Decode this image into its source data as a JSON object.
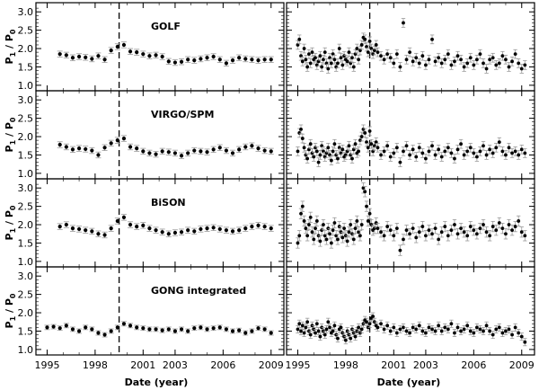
{
  "figure": {
    "y_label_main": "P",
    "y_label_sub1": "1",
    "y_label_sep": " / ",
    "y_label_sub0": "0",
    "x_label": "Date (year)",
    "x_ticks": [
      "1995",
      "1998",
      "2001",
      "2003",
      "2006",
      "2009"
    ],
    "y_ticks": [
      "1.0",
      "1.5",
      "2.0",
      "2.5",
      "3.0"
    ],
    "instruments": [
      "GOLF",
      "VIRGO/SPM",
      "BiSON",
      "GONG integrated"
    ]
  },
  "chart_data": [
    {
      "type": "scatter",
      "title": "GOLF",
      "panel": "left",
      "xlabel": "",
      "ylabel": "P1 / P0",
      "xlim": [
        1994.3,
        2009.8
      ],
      "ylim": [
        0.85,
        3.25
      ],
      "vline": 1999.5,
      "x": [
        1995.8,
        1996.2,
        1996.6,
        1997.0,
        1997.4,
        1997.8,
        1998.2,
        1998.6,
        1999.0,
        1999.4,
        1999.8,
        2000.2,
        2000.6,
        2001.0,
        2001.4,
        2001.8,
        2002.2,
        2002.6,
        2003.0,
        2003.4,
        2003.8,
        2004.2,
        2004.6,
        2005.0,
        2005.4,
        2005.8,
        2006.2,
        2006.6,
        2007.0,
        2007.4,
        2007.8,
        2008.2,
        2008.6,
        2009.0
      ],
      "y": [
        1.85,
        1.82,
        1.75,
        1.78,
        1.76,
        1.72,
        1.8,
        1.7,
        1.95,
        2.05,
        2.1,
        1.92,
        1.9,
        1.85,
        1.8,
        1.82,
        1.78,
        1.65,
        1.62,
        1.64,
        1.7,
        1.68,
        1.72,
        1.75,
        1.78,
        1.7,
        1.6,
        1.68,
        1.75,
        1.72,
        1.7,
        1.68,
        1.7,
        1.7
      ],
      "error": 0.08,
      "series_name": ""
    },
    {
      "type": "scatter",
      "title": "",
      "panel": "right",
      "xlim": [
        1994.3,
        2009.8
      ],
      "ylim": [
        0.85,
        3.25
      ],
      "vline": 1999.5,
      "x": [
        1995.0,
        1995.1,
        1995.2,
        1995.3,
        1995.4,
        1995.5,
        1995.6,
        1995.7,
        1995.8,
        1995.9,
        1996.0,
        1996.1,
        1996.2,
        1996.3,
        1996.4,
        1996.5,
        1996.6,
        1996.7,
        1996.8,
        1996.9,
        1997.0,
        1997.1,
        1997.2,
        1997.3,
        1997.4,
        1997.5,
        1997.6,
        1997.7,
        1997.8,
        1997.9,
        1998.0,
        1998.1,
        1998.2,
        1998.3,
        1998.4,
        1998.5,
        1998.6,
        1998.7,
        1998.8,
        1998.9,
        1999.0,
        1999.1,
        1999.2,
        1999.3,
        1999.4,
        1999.5,
        1999.6,
        1999.7,
        1999.8,
        1999.9,
        2000.0,
        2000.2,
        2000.4,
        2000.6,
        2000.8,
        2001.0,
        2001.2,
        2001.4,
        2001.6,
        2001.8,
        2002.0,
        2002.2,
        2002.4,
        2002.6,
        2002.8,
        2003.0,
        2003.2,
        2003.4,
        2003.6,
        2003.8,
        2004.0,
        2004.2,
        2004.4,
        2004.6,
        2004.8,
        2005.0,
        2005.2,
        2005.4,
        2005.6,
        2005.8,
        2006.0,
        2006.2,
        2006.4,
        2006.6,
        2006.8,
        2007.0,
        2007.2,
        2007.4,
        2007.6,
        2007.8,
        2008.0,
        2008.2,
        2008.4,
        2008.6,
        2008.8,
        2009.0,
        2009.2
      ],
      "y": [
        2.1,
        2.25,
        1.8,
        1.65,
        2.0,
        1.7,
        1.5,
        1.85,
        1.6,
        1.9,
        1.7,
        1.75,
        1.55,
        1.65,
        1.8,
        1.5,
        1.7,
        1.9,
        1.6,
        1.45,
        1.75,
        1.6,
        1.85,
        1.7,
        1.5,
        1.6,
        2.0,
        1.75,
        1.55,
        1.8,
        1.7,
        1.65,
        1.9,
        1.6,
        1.75,
        1.5,
        1.85,
        2.0,
        1.7,
        1.95,
        2.1,
        2.3,
        2.25,
        2.05,
        1.9,
        2.2,
        2.0,
        1.85,
        1.95,
        2.1,
        1.9,
        1.8,
        1.7,
        1.85,
        1.75,
        1.6,
        1.85,
        1.5,
        2.7,
        1.7,
        1.9,
        1.65,
        1.75,
        1.6,
        1.8,
        1.55,
        1.7,
        2.25,
        1.65,
        1.75,
        1.6,
        1.7,
        1.85,
        1.55,
        1.65,
        1.8,
        1.7,
        1.5,
        1.6,
        1.75,
        1.55,
        1.7,
        1.85,
        1.6,
        1.45,
        1.7,
        1.75,
        1.55,
        1.6,
        1.8,
        1.7,
        1.5,
        1.65,
        1.85,
        1.6,
        1.45,
        1.55
      ],
      "error": 0.12,
      "series_name": ""
    },
    {
      "type": "scatter",
      "title": "VIRGO/SPM",
      "panel": "left",
      "xlim": [
        1994.3,
        2009.8
      ],
      "ylim": [
        0.85,
        3.25
      ],
      "vline": 1999.5,
      "x": [
        1995.8,
        1996.2,
        1996.6,
        1997.0,
        1997.4,
        1997.8,
        1998.2,
        1998.6,
        1999.0,
        1999.4,
        1999.8,
        2000.2,
        2000.6,
        2001.0,
        2001.4,
        2001.8,
        2002.2,
        2002.6,
        2003.0,
        2003.4,
        2003.8,
        2004.2,
        2004.6,
        2005.0,
        2005.4,
        2005.8,
        2006.2,
        2006.6,
        2007.0,
        2007.4,
        2007.8,
        2008.2,
        2008.6,
        2009.0
      ],
      "y": [
        1.78,
        1.72,
        1.65,
        1.68,
        1.66,
        1.62,
        1.5,
        1.7,
        1.82,
        1.9,
        1.95,
        1.72,
        1.68,
        1.6,
        1.55,
        1.52,
        1.6,
        1.58,
        1.55,
        1.48,
        1.55,
        1.62,
        1.6,
        1.58,
        1.65,
        1.7,
        1.62,
        1.55,
        1.65,
        1.72,
        1.75,
        1.68,
        1.62,
        1.6
      ],
      "error": 0.08,
      "series_name": ""
    },
    {
      "type": "scatter",
      "title": "",
      "panel": "right",
      "xlim": [
        1994.3,
        2009.8
      ],
      "ylim": [
        0.85,
        3.25
      ],
      "vline": 1999.5,
      "x": [
        1995.0,
        1995.1,
        1995.2,
        1995.3,
        1995.4,
        1995.5,
        1995.6,
        1995.7,
        1995.8,
        1995.9,
        1996.0,
        1996.1,
        1996.2,
        1996.3,
        1996.4,
        1996.5,
        1996.6,
        1996.7,
        1996.8,
        1996.9,
        1997.0,
        1997.1,
        1997.2,
        1997.3,
        1997.4,
        1997.5,
        1997.6,
        1997.7,
        1997.8,
        1997.9,
        1998.0,
        1998.1,
        1998.2,
        1998.3,
        1998.4,
        1998.5,
        1998.6,
        1998.7,
        1998.8,
        1998.9,
        1999.0,
        1999.1,
        1999.2,
        1999.3,
        1999.4,
        1999.5,
        1999.6,
        1999.7,
        1999.8,
        1999.9,
        2000.0,
        2000.2,
        2000.4,
        2000.6,
        2000.8,
        2001.0,
        2001.2,
        2001.4,
        2001.6,
        2001.8,
        2002.0,
        2002.2,
        2002.4,
        2002.6,
        2002.8,
        2003.0,
        2003.2,
        2003.4,
        2003.6,
        2003.8,
        2004.0,
        2004.2,
        2004.4,
        2004.6,
        2004.8,
        2005.0,
        2005.2,
        2005.4,
        2005.6,
        2005.8,
        2006.0,
        2006.2,
        2006.4,
        2006.6,
        2006.8,
        2007.0,
        2007.2,
        2007.4,
        2007.6,
        2007.8,
        2008.0,
        2008.2,
        2008.4,
        2008.6,
        2008.8,
        2009.0,
        2009.2
      ],
      "y": [
        1.6,
        2.1,
        2.2,
        1.95,
        1.7,
        1.5,
        1.4,
        1.65,
        1.8,
        1.55,
        1.45,
        1.7,
        1.6,
        1.3,
        1.5,
        1.75,
        1.6,
        1.45,
        1.55,
        1.7,
        1.5,
        1.35,
        1.6,
        1.8,
        1.5,
        1.4,
        1.7,
        1.55,
        1.65,
        1.45,
        1.5,
        1.6,
        1.75,
        1.5,
        1.4,
        1.65,
        1.8,
        1.55,
        1.6,
        1.9,
        2.0,
        2.2,
        2.1,
        1.85,
        1.7,
        2.15,
        1.8,
        1.6,
        1.75,
        1.85,
        1.7,
        1.5,
        1.6,
        1.75,
        1.45,
        1.55,
        1.7,
        1.3,
        1.6,
        1.75,
        1.5,
        1.65,
        1.45,
        1.7,
        1.55,
        1.4,
        1.6,
        1.75,
        1.5,
        1.65,
        1.45,
        1.6,
        1.7,
        1.55,
        1.4,
        1.65,
        1.8,
        1.5,
        1.6,
        1.7,
        1.55,
        1.45,
        1.6,
        1.75,
        1.5,
        1.65,
        1.55,
        1.7,
        1.85,
        1.6,
        1.5,
        1.7,
        1.55,
        1.6,
        1.5,
        1.65,
        1.55
      ],
      "error": 0.12,
      "series_name": ""
    },
    {
      "type": "scatter",
      "title": "BiSON",
      "panel": "left",
      "xlim": [
        1994.3,
        2009.8
      ],
      "ylim": [
        0.85,
        3.25
      ],
      "vline": 1999.5,
      "x": [
        1995.8,
        1996.2,
        1996.6,
        1997.0,
        1997.4,
        1997.8,
        1998.2,
        1998.6,
        1999.0,
        1999.4,
        1999.8,
        2000.2,
        2000.6,
        2001.0,
        2001.4,
        2001.8,
        2002.2,
        2002.6,
        2003.0,
        2003.4,
        2003.8,
        2004.2,
        2004.6,
        2005.0,
        2005.4,
        2005.8,
        2006.2,
        2006.6,
        2007.0,
        2007.4,
        2007.8,
        2008.2,
        2008.6,
        2009.0
      ],
      "y": [
        1.95,
        2.0,
        1.9,
        1.88,
        1.85,
        1.82,
        1.75,
        1.72,
        1.9,
        2.1,
        2.2,
        2.0,
        1.95,
        1.98,
        1.9,
        1.85,
        1.8,
        1.75,
        1.78,
        1.8,
        1.85,
        1.82,
        1.88,
        1.9,
        1.92,
        1.88,
        1.85,
        1.82,
        1.85,
        1.9,
        1.95,
        1.98,
        1.95,
        1.9
      ],
      "error": 0.08,
      "series_name": ""
    },
    {
      "type": "scatter",
      "title": "",
      "panel": "right",
      "xlim": [
        1994.3,
        2009.8
      ],
      "ylim": [
        0.85,
        3.25
      ],
      "vline": 1999.5,
      "x": [
        1995.0,
        1995.1,
        1995.2,
        1995.3,
        1995.4,
        1995.5,
        1995.6,
        1995.7,
        1995.8,
        1995.9,
        1996.0,
        1996.1,
        1996.2,
        1996.3,
        1996.4,
        1996.5,
        1996.6,
        1996.7,
        1996.8,
        1996.9,
        1997.0,
        1997.1,
        1997.2,
        1997.3,
        1997.4,
        1997.5,
        1997.6,
        1997.7,
        1997.8,
        1997.9,
        1998.0,
        1998.1,
        1998.2,
        1998.3,
        1998.4,
        1998.5,
        1998.6,
        1998.7,
        1998.8,
        1998.9,
        1999.0,
        1999.1,
        1999.2,
        1999.3,
        1999.4,
        1999.5,
        1999.6,
        1999.7,
        1999.8,
        1999.9,
        2000.0,
        2000.2,
        2000.4,
        2000.6,
        2000.8,
        2001.0,
        2001.2,
        2001.4,
        2001.6,
        2001.8,
        2002.0,
        2002.2,
        2002.4,
        2002.6,
        2002.8,
        2003.0,
        2003.2,
        2003.4,
        2003.6,
        2003.8,
        2004.0,
        2004.2,
        2004.4,
        2004.6,
        2004.8,
        2005.0,
        2005.2,
        2005.4,
        2005.6,
        2005.8,
        2006.0,
        2006.2,
        2006.4,
        2006.6,
        2006.8,
        2007.0,
        2007.2,
        2007.4,
        2007.6,
        2007.8,
        2008.0,
        2008.2,
        2008.4,
        2008.6,
        2008.8,
        2009.0,
        2009.2
      ],
      "y": [
        1.5,
        1.7,
        2.3,
        2.5,
        2.1,
        1.9,
        1.7,
        2.0,
        2.2,
        1.8,
        1.6,
        1.9,
        2.1,
        1.7,
        1.55,
        1.85,
        2.0,
        1.7,
        1.6,
        1.9,
        1.75,
        1.5,
        1.85,
        2.05,
        1.7,
        1.6,
        1.95,
        1.8,
        1.65,
        1.9,
        1.7,
        1.55,
        1.8,
        2.0,
        1.75,
        1.6,
        1.9,
        2.1,
        1.8,
        1.7,
        2.0,
        3.0,
        2.9,
        2.5,
        2.1,
        2.3,
        2.0,
        1.85,
        1.9,
        2.05,
        1.9,
        1.8,
        1.7,
        1.95,
        1.85,
        1.7,
        1.9,
        1.3,
        1.6,
        1.85,
        1.75,
        1.9,
        1.65,
        1.8,
        1.95,
        1.7,
        1.85,
        1.75,
        1.9,
        1.6,
        1.8,
        1.95,
        1.7,
        1.85,
        2.0,
        1.75,
        1.9,
        1.8,
        1.7,
        1.95,
        1.85,
        1.75,
        1.9,
        2.0,
        1.8,
        1.7,
        1.95,
        1.85,
        2.05,
        1.9,
        1.75,
        2.0,
        1.85,
        1.95,
        2.1,
        1.8,
        1.7
      ],
      "error": 0.14,
      "series_name": ""
    },
    {
      "type": "scatter",
      "title": "GONG integrated",
      "panel": "left",
      "xlim": [
        1994.3,
        2009.8
      ],
      "ylim": [
        0.85,
        3.25
      ],
      "vline": 1999.5,
      "x": [
        1995.0,
        1995.4,
        1995.8,
        1996.2,
        1996.6,
        1997.0,
        1997.4,
        1997.8,
        1998.2,
        1998.6,
        1999.0,
        1999.4,
        1999.8,
        2000.2,
        2000.6,
        2001.0,
        2001.4,
        2001.8,
        2002.2,
        2002.6,
        2003.0,
        2003.4,
        2003.8,
        2004.2,
        2004.6,
        2005.0,
        2005.4,
        2005.8,
        2006.2,
        2006.6,
        2007.0,
        2007.4,
        2007.8,
        2008.2,
        2008.6,
        2009.0
      ],
      "y": [
        1.6,
        1.62,
        1.58,
        1.65,
        1.55,
        1.5,
        1.6,
        1.55,
        1.45,
        1.4,
        1.5,
        1.6,
        1.7,
        1.65,
        1.6,
        1.58,
        1.55,
        1.55,
        1.52,
        1.55,
        1.5,
        1.55,
        1.5,
        1.58,
        1.6,
        1.55,
        1.58,
        1.6,
        1.55,
        1.5,
        1.52,
        1.45,
        1.5,
        1.58,
        1.55,
        1.45
      ],
      "error": 0.06,
      "series_name": ""
    },
    {
      "type": "scatter",
      "title": "",
      "panel": "right",
      "xlim": [
        1994.3,
        2009.8
      ],
      "ylim": [
        0.85,
        3.25
      ],
      "vline": 1999.5,
      "x": [
        1995.0,
        1995.1,
        1995.2,
        1995.3,
        1995.4,
        1995.5,
        1995.6,
        1995.7,
        1995.8,
        1995.9,
        1996.0,
        1996.1,
        1996.2,
        1996.3,
        1996.4,
        1996.5,
        1996.6,
        1996.7,
        1996.8,
        1996.9,
        1997.0,
        1997.1,
        1997.2,
        1997.3,
        1997.4,
        1997.5,
        1997.6,
        1997.7,
        1997.8,
        1997.9,
        1998.0,
        1998.1,
        1998.2,
        1998.3,
        1998.4,
        1998.5,
        1998.6,
        1998.7,
        1998.8,
        1998.9,
        1999.0,
        1999.1,
        1999.2,
        1999.3,
        1999.4,
        1999.5,
        1999.6,
        1999.7,
        1999.8,
        1999.9,
        2000.0,
        2000.2,
        2000.4,
        2000.6,
        2000.8,
        2001.0,
        2001.2,
        2001.4,
        2001.6,
        2001.8,
        2002.0,
        2002.2,
        2002.4,
        2002.6,
        2002.8,
        2003.0,
        2003.2,
        2003.4,
        2003.6,
        2003.8,
        2004.0,
        2004.2,
        2004.4,
        2004.6,
        2004.8,
        2005.0,
        2005.2,
        2005.4,
        2005.6,
        2005.8,
        2006.0,
        2006.2,
        2006.4,
        2006.6,
        2006.8,
        2007.0,
        2007.2,
        2007.4,
        2007.6,
        2007.8,
        2008.0,
        2008.2,
        2008.4,
        2008.6,
        2008.8,
        2009.0,
        2009.2
      ],
      "y": [
        1.55,
        1.7,
        1.5,
        1.65,
        1.45,
        1.6,
        1.75,
        1.5,
        1.4,
        1.65,
        1.55,
        1.45,
        1.7,
        1.5,
        1.35,
        1.6,
        1.5,
        1.4,
        1.55,
        1.75,
        1.6,
        1.45,
        1.5,
        1.65,
        1.4,
        1.3,
        1.55,
        1.6,
        1.45,
        1.35,
        1.25,
        1.5,
        1.4,
        1.3,
        1.55,
        1.45,
        1.35,
        1.5,
        1.6,
        1.45,
        1.55,
        1.7,
        1.8,
        1.75,
        1.6,
        1.7,
        1.85,
        1.9,
        1.75,
        1.65,
        1.6,
        1.7,
        1.55,
        1.65,
        1.5,
        1.6,
        1.45,
        1.55,
        1.6,
        1.5,
        1.45,
        1.6,
        1.55,
        1.65,
        1.5,
        1.45,
        1.6,
        1.55,
        1.5,
        1.65,
        1.5,
        1.6,
        1.55,
        1.7,
        1.45,
        1.6,
        1.5,
        1.55,
        1.65,
        1.5,
        1.45,
        1.6,
        1.55,
        1.5,
        1.65,
        1.5,
        1.4,
        1.55,
        1.6,
        1.45,
        1.5,
        1.55,
        1.4,
        1.6,
        1.45,
        1.35,
        1.2
      ],
      "error": 0.1,
      "series_name": ""
    }
  ]
}
